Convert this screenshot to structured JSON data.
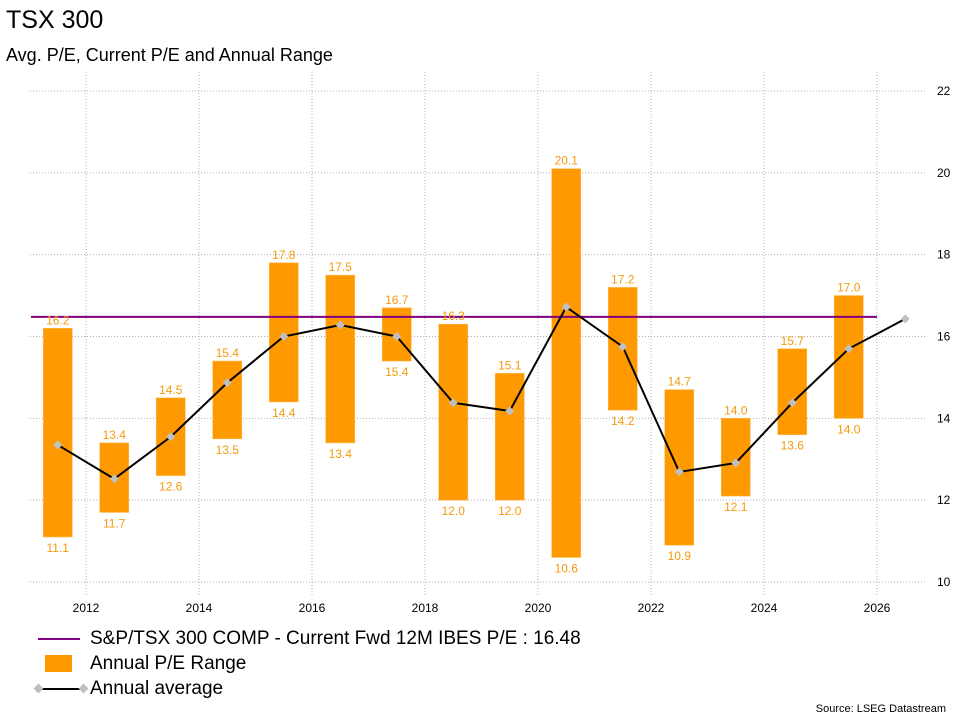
{
  "chart_data": {
    "type": "bar",
    "title": "TSX 300",
    "subtitle": "Avg. P/E, Current P/E and Annual Range",
    "xlabel": "",
    "ylabel": "",
    "x_ticks": [
      "2012",
      "2014",
      "2016",
      "2018",
      "2020",
      "2022",
      "2024",
      "2026"
    ],
    "y_ticks": [
      "10",
      "12",
      "14",
      "16",
      "18",
      "20",
      "22"
    ],
    "ylim": [
      10,
      22
    ],
    "xlim": [
      2011,
      2027
    ],
    "y_axis_side": "right",
    "grid": true,
    "categories": [
      2011,
      2012,
      2013,
      2014,
      2015,
      2016,
      2017,
      2018,
      2019,
      2020,
      2021,
      2022,
      2023,
      2024,
      2025
    ],
    "series": [
      {
        "name": "Annual P/E Range",
        "type": "range-bar",
        "color": "#FF9900",
        "high": [
          16.2,
          13.4,
          14.5,
          15.4,
          17.8,
          17.5,
          16.7,
          16.3,
          15.1,
          20.1,
          17.2,
          14.7,
          14.0,
          15.7,
          17.0
        ],
        "low": [
          11.1,
          11.7,
          12.6,
          13.5,
          14.4,
          13.4,
          15.4,
          12.0,
          12.0,
          10.6,
          14.2,
          10.9,
          12.1,
          13.6,
          14.0
        ],
        "high_labels": [
          "16.2",
          "13.4",
          "14.5",
          "15.4",
          "17.8",
          "17.5",
          "16.7",
          "16.3",
          "15.1",
          "20.1",
          "17.2",
          "14.7",
          "14.0",
          "15.7",
          "17.0"
        ],
        "low_labels": [
          "11.1",
          "11.7",
          "12.6",
          "13.5",
          "14.4",
          "13.4",
          "15.4",
          "12.0",
          "12.0",
          "10.6",
          "14.2",
          "10.9",
          "12.1",
          "13.6",
          "14.0"
        ]
      },
      {
        "name": "Annual average",
        "type": "line",
        "color": "#000000",
        "marker_color": "#C0C0C0",
        "x": [
          2011,
          2012,
          2013,
          2014,
          2015,
          2016,
          2017,
          2018,
          2019,
          2020,
          2021,
          2022,
          2023,
          2024,
          2025,
          2026
        ],
        "values": [
          13.35,
          12.52,
          13.55,
          14.87,
          16.0,
          16.28,
          16.0,
          14.38,
          14.18,
          16.72,
          15.75,
          12.69,
          12.91,
          14.38,
          15.7,
          16.43
        ]
      },
      {
        "name": "S&P/TSX 300 COMP - Current Fwd 12M IBES P/E : 16.48",
        "type": "hline",
        "color": "#800080",
        "value": 16.48,
        "x_range": [
          2011,
          2026
        ]
      }
    ],
    "legend": {
      "placement": "bottom-left",
      "entries": [
        "S&P/TSX 300 COMP - Current Fwd 12M IBES P/E : 16.48",
        "Annual P/E Range",
        "Annual average"
      ]
    },
    "source": "Source: LSEG Datastream"
  }
}
